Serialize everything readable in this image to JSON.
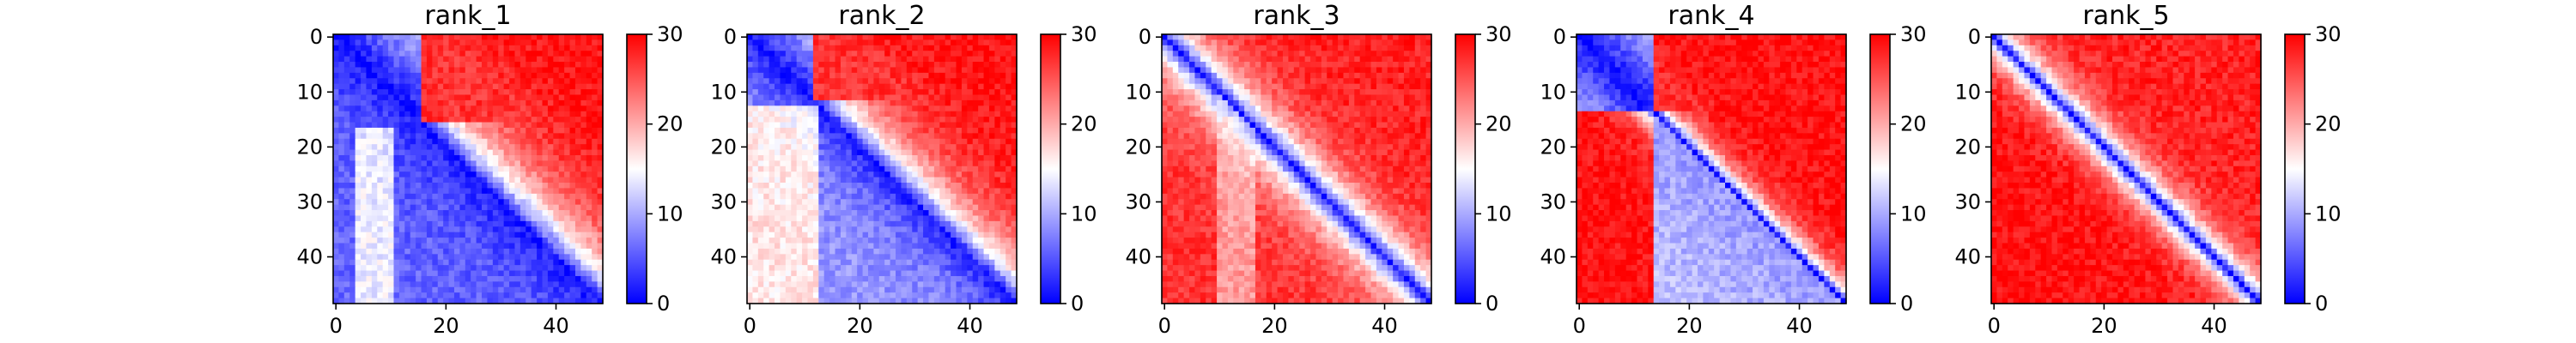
{
  "chart_data": [
    {
      "type": "heatmap",
      "title": "rank_1",
      "size": 49,
      "colormap": "bwr",
      "clim": [
        0,
        30
      ],
      "xticks": [
        0,
        20,
        40
      ],
      "yticks": [
        0,
        10,
        20,
        30,
        40
      ],
      "colorbar_ticks": [
        0,
        10,
        20,
        30
      ],
      "pattern": {
        "diagonal": 1.0,
        "lower_far": 6.0,
        "upper_far": 29.0,
        "block_split": 16,
        "band_width": 8.0,
        "vertical_streak": [
          4,
          10
        ],
        "streak_value": 22.0
      }
    },
    {
      "type": "heatmap",
      "title": "rank_2",
      "size": 49,
      "colormap": "bwr",
      "clim": [
        0,
        30
      ],
      "xticks": [
        0,
        20,
        40
      ],
      "yticks": [
        0,
        10,
        20,
        30,
        40
      ],
      "colorbar_ticks": [
        0,
        10,
        20,
        30
      ],
      "pattern": {
        "diagonal": 1.0,
        "lower_far": 9.0,
        "upper_far": 29.0,
        "block_split": 12,
        "band_width": 7.0,
        "vertical_streak": [
          0,
          12
        ],
        "streak_value": 24.0
      }
    },
    {
      "type": "heatmap",
      "title": "rank_3",
      "size": 49,
      "colormap": "bwr",
      "clim": [
        0,
        30
      ],
      "xticks": [
        0,
        20,
        40
      ],
      "yticks": [
        0,
        10,
        20,
        30,
        40
      ],
      "colorbar_ticks": [
        0,
        10,
        20,
        30
      ],
      "pattern": {
        "diagonal": 1.0,
        "lower_far": 27.0,
        "upper_far": 28.0,
        "block_split": 0,
        "band_width": 5.0,
        "vertical_streak": [
          10,
          16
        ],
        "streak_value": 15.0
      }
    },
    {
      "type": "heatmap",
      "title": "rank_4",
      "size": 49,
      "colormap": "bwr",
      "clim": [
        0,
        30
      ],
      "xticks": [
        0,
        20,
        40
      ],
      "yticks": [
        0,
        10,
        20,
        30,
        40
      ],
      "colorbar_ticks": [
        0,
        10,
        20,
        30
      ],
      "pattern": {
        "diagonal": 1.0,
        "lower_far": 29.0,
        "upper_far": 29.0,
        "block_split": 14,
        "band_width": 3.0,
        "vertical_streak": [
          0,
          0
        ],
        "streak_value": 0
      }
    },
    {
      "type": "heatmap",
      "title": "rank_5",
      "size": 49,
      "colormap": "bwr",
      "clim": [
        0,
        30
      ],
      "xticks": [
        0,
        20,
        40
      ],
      "yticks": [
        0,
        10,
        20,
        30,
        40
      ],
      "colorbar_ticks": [
        0,
        10,
        20,
        30
      ],
      "pattern": {
        "diagonal": 1.0,
        "lower_far": 29.0,
        "upper_far": 28.0,
        "block_split": 0,
        "band_width": 3.5,
        "vertical_streak": [
          0,
          0
        ],
        "streak_value": 0
      }
    }
  ]
}
